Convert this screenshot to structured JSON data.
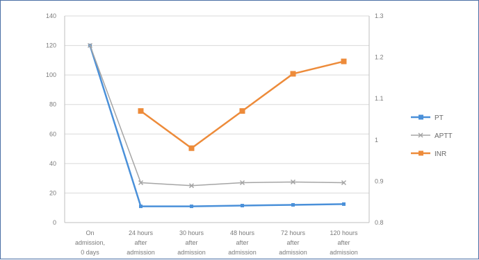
{
  "chart_data": {
    "type": "line",
    "title": "",
    "xlabel": "",
    "ylabel": "",
    "ylabel_right": "",
    "categories": [
      [
        "On",
        "admission,",
        "0 days"
      ],
      [
        "24 hours",
        "after",
        "admission"
      ],
      [
        "30 hours",
        "after",
        "admission"
      ],
      [
        "48 hours",
        "after",
        "admission"
      ],
      [
        "72 hours",
        "after",
        "admission"
      ],
      [
        "120 hours",
        "after",
        "admission"
      ]
    ],
    "left_axis": {
      "min": 0,
      "max": 140,
      "ticks": [
        "0",
        "20",
        "40",
        "60",
        "80",
        "100",
        "120",
        "140"
      ]
    },
    "right_axis": {
      "min": 0.8,
      "max": 1.3,
      "ticks": [
        "0.8",
        "0.85",
        "0.9",
        "0.95",
        "1",
        "1.05",
        "1.1",
        "1.15",
        "1.2",
        "1.25",
        "1.3"
      ]
    },
    "series": [
      {
        "name": "PT",
        "axis": "left",
        "color": "#4a90d9",
        "marker": "square",
        "values": [
          120,
          11,
          11,
          11.5,
          12,
          12.5
        ]
      },
      {
        "name": "APTT",
        "axis": "left",
        "color": "#a5a5a5",
        "marker": "x",
        "values": [
          120,
          27,
          25,
          27,
          27.5,
          27
        ]
      },
      {
        "name": "INR",
        "axis": "right",
        "color": "#ed8b3a",
        "marker": "square",
        "values": [
          null,
          1.07,
          0.98,
          1.07,
          1.16,
          1.19
        ]
      }
    ],
    "legend_position": "right",
    "grid": true
  }
}
